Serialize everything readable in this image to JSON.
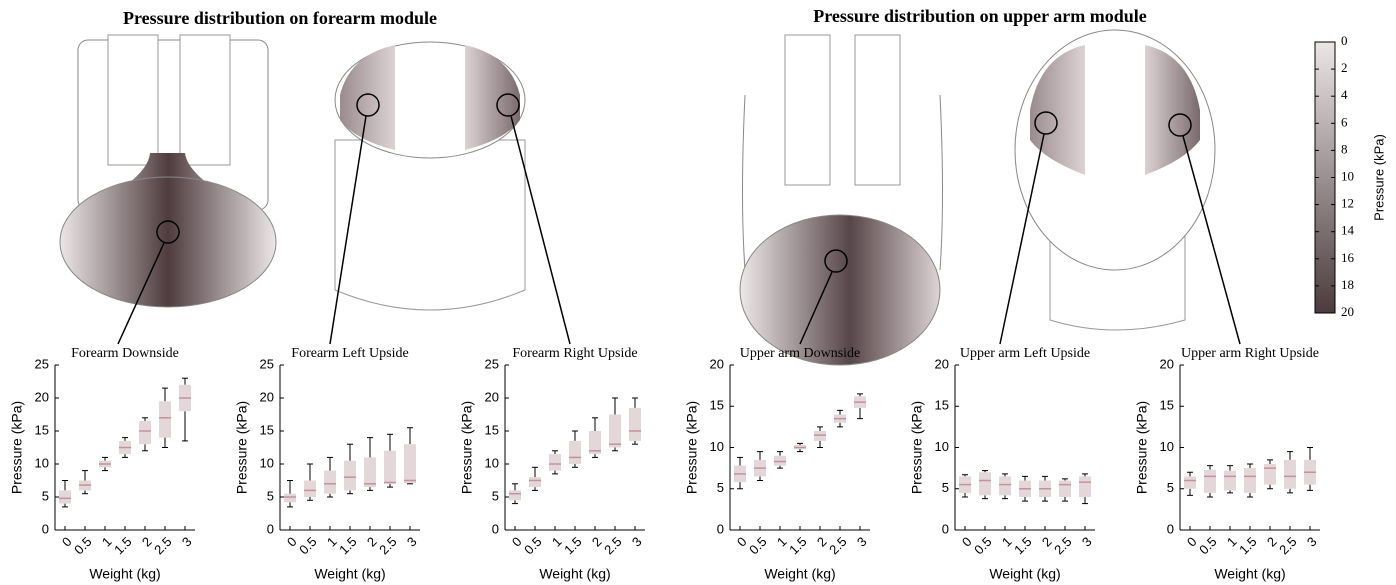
{
  "headings": [
    "Pressure distribution on forearm module",
    "Pressure distribution on upper arm module"
  ],
  "colorbar": {
    "label": "Pressure (kPa)",
    "lim": [
      0,
      20
    ],
    "ticks": [
      0,
      2,
      4,
      6,
      8,
      10,
      12,
      14,
      16,
      18,
      20
    ],
    "colormap": [
      "#ebe5e6",
      "#4b3b3d"
    ]
  },
  "chart_data": [
    {
      "type": "box",
      "title": "Forearm Downside",
      "xlabel": "Weight (kg)",
      "ylabel": "Pressure (kPa)",
      "categories": [
        "0",
        "0.5",
        "1",
        "1.5",
        "2",
        "2.5",
        "3"
      ],
      "ylim": [
        0,
        25
      ],
      "yticks": [
        0,
        5,
        10,
        15,
        20,
        25
      ],
      "color": "#e3d7da",
      "median_color": "#c4929b",
      "boxes": [
        {
          "min": 3.5,
          "q1": 4,
          "median": 4.8,
          "q3": 6,
          "max": 7.5
        },
        {
          "min": 5.5,
          "q1": 6,
          "median": 6.8,
          "q3": 7.5,
          "max": 9
        },
        {
          "min": 9,
          "q1": 9.5,
          "median": 10,
          "q3": 10.5,
          "max": 11
        },
        {
          "min": 11,
          "q1": 11.5,
          "median": 12.5,
          "q3": 13.5,
          "max": 14
        },
        {
          "min": 12,
          "q1": 13,
          "median": 15,
          "q3": 16.5,
          "max": 17
        },
        {
          "min": 12.5,
          "q1": 14,
          "median": 17,
          "q3": 19.5,
          "max": 21.5
        },
        {
          "min": 13.5,
          "q1": 18,
          "median": 20,
          "q3": 22,
          "max": 23
        }
      ]
    },
    {
      "type": "box",
      "title": "Forearm Left Upside",
      "xlabel": "Weight (kg)",
      "ylabel": "Pressure (kPa)",
      "categories": [
        "0",
        "0.5",
        "1",
        "1.5",
        "2",
        "2.5",
        "3"
      ],
      "ylim": [
        0,
        25
      ],
      "yticks": [
        0,
        5,
        10,
        15,
        20,
        25
      ],
      "color": "#e3d7da",
      "median_color": "#c4929b",
      "boxes": [
        {
          "min": 3.5,
          "q1": 4.2,
          "median": 5,
          "q3": 5.5,
          "max": 7.5
        },
        {
          "min": 4.5,
          "q1": 5,
          "median": 6,
          "q3": 7.5,
          "max": 10
        },
        {
          "min": 5,
          "q1": 5.5,
          "median": 7,
          "q3": 9,
          "max": 11
        },
        {
          "min": 5.5,
          "q1": 6,
          "median": 8,
          "q3": 10.5,
          "max": 13
        },
        {
          "min": 6,
          "q1": 6.5,
          "median": 7,
          "q3": 11,
          "max": 14
        },
        {
          "min": 6.5,
          "q1": 7,
          "median": 7.2,
          "q3": 12,
          "max": 14.5
        },
        {
          "min": 7,
          "q1": 7.1,
          "median": 7.5,
          "q3": 13,
          "max": 15.5
        }
      ]
    },
    {
      "type": "box",
      "title": "Forearm Right Upside",
      "xlabel": "Weight (kg)",
      "ylabel": "Pressure (kPa)",
      "categories": [
        "0",
        "0.5",
        "1",
        "1.5",
        "2",
        "2.5",
        "3"
      ],
      "ylim": [
        0,
        25
      ],
      "yticks": [
        0,
        5,
        10,
        15,
        20,
        25
      ],
      "color": "#e3d7da",
      "median_color": "#c4929b",
      "boxes": [
        {
          "min": 4,
          "q1": 4.5,
          "median": 5.5,
          "q3": 6,
          "max": 7
        },
        {
          "min": 6,
          "q1": 6.5,
          "median": 7.5,
          "q3": 8,
          "max": 9.5
        },
        {
          "min": 8.5,
          "q1": 9,
          "median": 10,
          "q3": 11.5,
          "max": 12
        },
        {
          "min": 9.5,
          "q1": 10,
          "median": 11,
          "q3": 13.5,
          "max": 15
        },
        {
          "min": 11,
          "q1": 11.5,
          "median": 12,
          "q3": 15,
          "max": 17
        },
        {
          "min": 12,
          "q1": 12.5,
          "median": 13,
          "q3": 17.5,
          "max": 20
        },
        {
          "min": 13,
          "q1": 13.5,
          "median": 15,
          "q3": 18.5,
          "max": 20
        }
      ]
    },
    {
      "type": "box",
      "title": "Upper arm Downside",
      "xlabel": "Weight (kg)",
      "ylabel": "Pressure (kPa)",
      "categories": [
        "0",
        "0.5",
        "1",
        "1.5",
        "2",
        "2.5",
        "3"
      ],
      "ylim": [
        0,
        20
      ],
      "yticks": [
        0,
        5,
        10,
        15,
        20
      ],
      "color": "#e3d7da",
      "median_color": "#c4929b",
      "boxes": [
        {
          "min": 5,
          "q1": 5.8,
          "median": 6.8,
          "q3": 7.8,
          "max": 8.8
        },
        {
          "min": 6,
          "q1": 6.5,
          "median": 7.5,
          "q3": 8.5,
          "max": 9.5
        },
        {
          "min": 7.5,
          "q1": 7.8,
          "median": 8.3,
          "q3": 9,
          "max": 9.5
        },
        {
          "min": 9.5,
          "q1": 9.8,
          "median": 10,
          "q3": 10.3,
          "max": 10.5
        },
        {
          "min": 10,
          "q1": 10.8,
          "median": 11.5,
          "q3": 12,
          "max": 12.5
        },
        {
          "min": 12.5,
          "q1": 13,
          "median": 13.5,
          "q3": 14,
          "max": 14.5
        },
        {
          "min": 13.5,
          "q1": 14.8,
          "median": 15.5,
          "q3": 16.2,
          "max": 16.5
        }
      ]
    },
    {
      "type": "box",
      "title": "Upper arm Left Upside",
      "xlabel": "Weight (kg)",
      "ylabel": "Pressure (kPa)",
      "categories": [
        "0",
        "0.5",
        "1",
        "1.5",
        "2",
        "2.5",
        "3"
      ],
      "ylim": [
        0,
        20
      ],
      "yticks": [
        0,
        5,
        10,
        15,
        20
      ],
      "color": "#e3d7da",
      "median_color": "#c4929b",
      "boxes": [
        {
          "min": 4,
          "q1": 4.5,
          "median": 5.5,
          "q3": 6.5,
          "max": 6.7
        },
        {
          "min": 3.8,
          "q1": 4.2,
          "median": 6,
          "q3": 7,
          "max": 7.2
        },
        {
          "min": 3.8,
          "q1": 4.2,
          "median": 5.5,
          "q3": 6.5,
          "max": 6.8
        },
        {
          "min": 3.5,
          "q1": 4,
          "median": 5,
          "q3": 6,
          "max": 6.5
        },
        {
          "min": 3.5,
          "q1": 4,
          "median": 5,
          "q3": 6,
          "max": 6.5
        },
        {
          "min": 3.5,
          "q1": 4,
          "median": 5.5,
          "q3": 6,
          "max": 6.2
        },
        {
          "min": 3.2,
          "q1": 4,
          "median": 5.8,
          "q3": 6.5,
          "max": 6.8
        }
      ]
    },
    {
      "type": "box",
      "title": "Upper arm Right Upside",
      "xlabel": "Weight (kg)",
      "ylabel": "Pressure (kPa)",
      "categories": [
        "0",
        "0.5",
        "1",
        "1.5",
        "2",
        "2.5",
        "3"
      ],
      "ylim": [
        0,
        20
      ],
      "yticks": [
        0,
        5,
        10,
        15,
        20
      ],
      "color": "#e3d7da",
      "median_color": "#c4929b",
      "boxes": [
        {
          "min": 4.2,
          "q1": 5,
          "median": 6,
          "q3": 6.5,
          "max": 7
        },
        {
          "min": 4,
          "q1": 4.5,
          "median": 6.5,
          "q3": 7.3,
          "max": 7.8
        },
        {
          "min": 4.5,
          "q1": 4.8,
          "median": 6.5,
          "q3": 7.2,
          "max": 7.8
        },
        {
          "min": 4,
          "q1": 4.5,
          "median": 6.5,
          "q3": 7.5,
          "max": 8
        },
        {
          "min": 5,
          "q1": 5.5,
          "median": 7.5,
          "q3": 8,
          "max": 8.5
        },
        {
          "min": 4.5,
          "q1": 5,
          "median": 6.5,
          "q3": 8.5,
          "max": 9.5
        },
        {
          "min": 4.8,
          "q1": 5.5,
          "median": 7,
          "q3": 8.5,
          "max": 10
        }
      ]
    }
  ]
}
